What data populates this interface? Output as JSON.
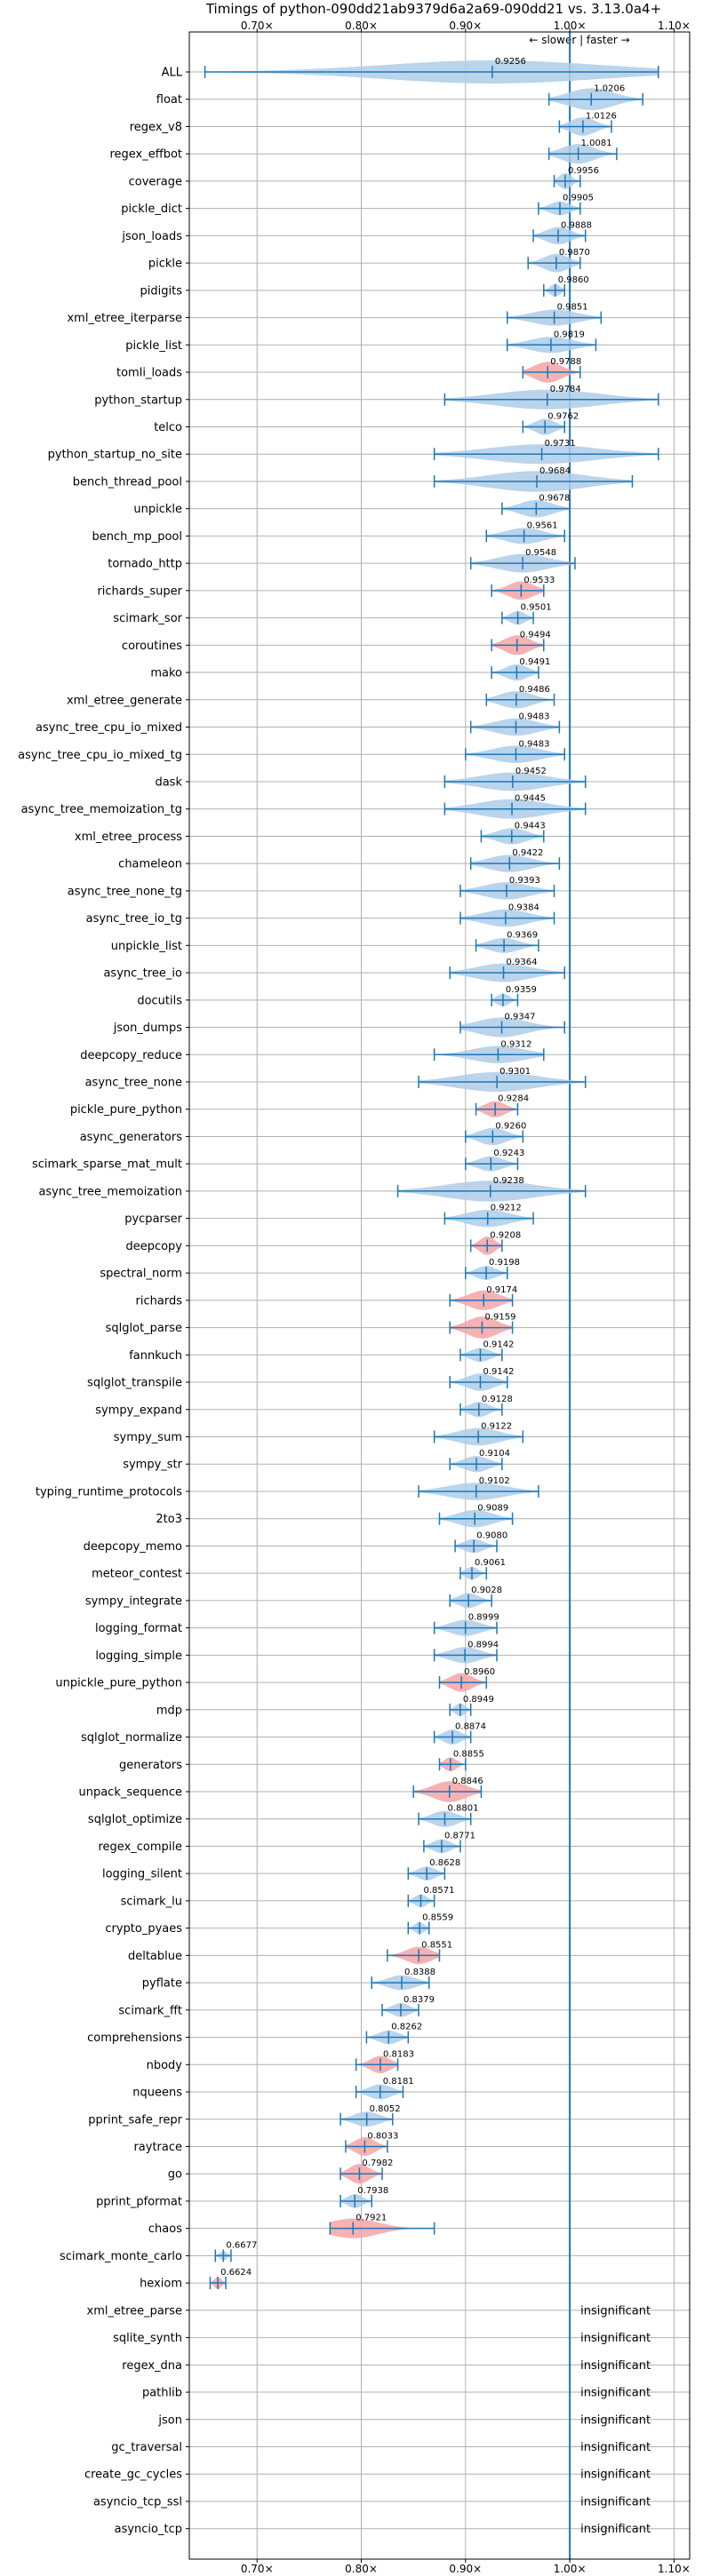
{
  "chart_data": {
    "type": "violin",
    "title": "Timings of python-090dd21ab9379d6a2a69-090dd21 vs. 3.13.0a4+",
    "direction_note": "← slower | faster →",
    "x_ticks": [
      "0.70x",
      "0.80x",
      "0.90x",
      "1.00x",
      "1.10x"
    ],
    "x_tick_values": [
      0.7,
      0.8,
      0.9,
      1.0,
      1.1
    ],
    "xlim": [
      0.635,
      1.115
    ],
    "reference_line": 1.0,
    "grid": true,
    "colors": {
      "faster_or_neutral": "#1f77b4",
      "violin_fill": "#aecde9",
      "slower_significant": "#f4a3a6",
      "reference": "#1f77b4"
    },
    "insignificant_text": "insignificant",
    "benchmarks": [
      {
        "name": "ALL",
        "value": 0.9256,
        "label": "0.9256",
        "min": 0.65,
        "max": 1.085,
        "width": 1.0,
        "sig": false
      },
      {
        "name": "float",
        "value": 1.0206,
        "label": "1.0206",
        "min": 0.98,
        "max": 1.07,
        "width": 0.95,
        "sig": false
      },
      {
        "name": "regex_v8",
        "value": 1.0126,
        "label": "1.0126",
        "min": 0.99,
        "max": 1.04,
        "width": 0.8,
        "sig": false
      },
      {
        "name": "regex_effbot",
        "value": 1.0081,
        "label": "1.0081",
        "min": 0.98,
        "max": 1.045,
        "width": 0.85,
        "sig": false
      },
      {
        "name": "coverage",
        "value": 0.9956,
        "label": "0.9956",
        "min": 0.985,
        "max": 1.01,
        "width": 0.7,
        "sig": false
      },
      {
        "name": "pickle_dict",
        "value": 0.9905,
        "label": "0.9905",
        "min": 0.97,
        "max": 1.01,
        "width": 0.6,
        "sig": false
      },
      {
        "name": "json_loads",
        "value": 0.9888,
        "label": "0.9888",
        "min": 0.965,
        "max": 1.015,
        "width": 0.75,
        "sig": false
      },
      {
        "name": "pickle",
        "value": 0.987,
        "label": "0.9870",
        "min": 0.96,
        "max": 1.01,
        "width": 0.8,
        "sig": false
      },
      {
        "name": "pidigits",
        "value": 0.986,
        "label": "0.9860",
        "min": 0.975,
        "max": 0.995,
        "width": 0.55,
        "sig": false
      },
      {
        "name": "xml_etree_iterparse",
        "value": 0.9851,
        "label": "0.9851",
        "min": 0.94,
        "max": 1.03,
        "width": 0.7,
        "sig": false
      },
      {
        "name": "pickle_list",
        "value": 0.9819,
        "label": "0.9819",
        "min": 0.94,
        "max": 1.025,
        "width": 0.7,
        "sig": false
      },
      {
        "name": "tomli_loads",
        "value": 0.9788,
        "label": "0.9788",
        "min": 0.955,
        "max": 1.01,
        "width": 0.9,
        "sig": true
      },
      {
        "name": "python_startup",
        "value": 0.9784,
        "label": "0.9784",
        "min": 0.88,
        "max": 1.085,
        "width": 0.85,
        "sig": false
      },
      {
        "name": "telco",
        "value": 0.9762,
        "label": "0.9762",
        "min": 0.955,
        "max": 0.995,
        "width": 0.7,
        "sig": false
      },
      {
        "name": "python_startup_no_site",
        "value": 0.9731,
        "label": "0.9731",
        "min": 0.87,
        "max": 1.085,
        "width": 0.85,
        "sig": false
      },
      {
        "name": "bench_thread_pool",
        "value": 0.9684,
        "label": "0.9684",
        "min": 0.87,
        "max": 1.06,
        "width": 0.9,
        "sig": false
      },
      {
        "name": "unpickle",
        "value": 0.9678,
        "label": "0.9678",
        "min": 0.935,
        "max": 1.0,
        "width": 0.75,
        "sig": false
      },
      {
        "name": "bench_mp_pool",
        "value": 0.9561,
        "label": "0.9561",
        "min": 0.92,
        "max": 0.995,
        "width": 0.7,
        "sig": false
      },
      {
        "name": "tornado_http",
        "value": 0.9548,
        "label": "0.9548",
        "min": 0.905,
        "max": 1.005,
        "width": 0.8,
        "sig": false
      },
      {
        "name": "richards_super",
        "value": 0.9533,
        "label": "0.9533",
        "min": 0.925,
        "max": 0.975,
        "width": 0.8,
        "sig": true
      },
      {
        "name": "scimark_sor",
        "value": 0.9501,
        "label": "0.9501",
        "min": 0.935,
        "max": 0.965,
        "width": 0.6,
        "sig": false
      },
      {
        "name": "coroutines",
        "value": 0.9494,
        "label": "0.9494",
        "min": 0.925,
        "max": 0.975,
        "width": 0.85,
        "sig": true
      },
      {
        "name": "mako",
        "value": 0.9491,
        "label": "0.9491",
        "min": 0.925,
        "max": 0.97,
        "width": 0.7,
        "sig": false
      },
      {
        "name": "xml_etree_generate",
        "value": 0.9486,
        "label": "0.9486",
        "min": 0.92,
        "max": 0.985,
        "width": 0.75,
        "sig": false
      },
      {
        "name": "async_tree_cpu_io_mixed",
        "value": 0.9483,
        "label": "0.9483",
        "min": 0.905,
        "max": 0.99,
        "width": 0.75,
        "sig": false
      },
      {
        "name": "async_tree_cpu_io_mixed_tg",
        "value": 0.9483,
        "label": "0.9483",
        "min": 0.9,
        "max": 0.995,
        "width": 0.75,
        "sig": false
      },
      {
        "name": "dask",
        "value": 0.9452,
        "label": "0.9452",
        "min": 0.88,
        "max": 1.015,
        "width": 0.8,
        "sig": false
      },
      {
        "name": "async_tree_memoization_tg",
        "value": 0.9445,
        "label": "0.9445",
        "min": 0.88,
        "max": 1.015,
        "width": 0.85,
        "sig": false
      },
      {
        "name": "xml_etree_process",
        "value": 0.9443,
        "label": "0.9443",
        "min": 0.915,
        "max": 0.975,
        "width": 0.7,
        "sig": false
      },
      {
        "name": "chameleon",
        "value": 0.9422,
        "label": "0.9422",
        "min": 0.905,
        "max": 0.99,
        "width": 0.75,
        "sig": false
      },
      {
        "name": "async_tree_none_tg",
        "value": 0.9393,
        "label": "0.9393",
        "min": 0.895,
        "max": 0.985,
        "width": 0.75,
        "sig": false
      },
      {
        "name": "async_tree_io_tg",
        "value": 0.9384,
        "label": "0.9384",
        "min": 0.895,
        "max": 0.985,
        "width": 0.75,
        "sig": false
      },
      {
        "name": "unpickle_list",
        "value": 0.9369,
        "label": "0.9369",
        "min": 0.91,
        "max": 0.97,
        "width": 0.65,
        "sig": false
      },
      {
        "name": "async_tree_io",
        "value": 0.9364,
        "label": "0.9364",
        "min": 0.885,
        "max": 0.995,
        "width": 0.8,
        "sig": false
      },
      {
        "name": "docutils",
        "value": 0.9359,
        "label": "0.9359",
        "min": 0.925,
        "max": 0.95,
        "width": 0.55,
        "sig": false
      },
      {
        "name": "json_dumps",
        "value": 0.9347,
        "label": "0.9347",
        "min": 0.895,
        "max": 0.995,
        "width": 0.85,
        "sig": false
      },
      {
        "name": "deepcopy_reduce",
        "value": 0.9312,
        "label": "0.9312",
        "min": 0.87,
        "max": 0.975,
        "width": 0.75,
        "sig": false
      },
      {
        "name": "async_tree_none",
        "value": 0.9301,
        "label": "0.9301",
        "min": 0.855,
        "max": 1.015,
        "width": 0.85,
        "sig": false
      },
      {
        "name": "pickle_pure_python",
        "value": 0.9284,
        "label": "0.9284",
        "min": 0.91,
        "max": 0.95,
        "width": 0.7,
        "sig": true
      },
      {
        "name": "async_generators",
        "value": 0.926,
        "label": "0.9260",
        "min": 0.9,
        "max": 0.955,
        "width": 0.75,
        "sig": false
      },
      {
        "name": "scimark_sparse_mat_mult",
        "value": 0.9243,
        "label": "0.9243",
        "min": 0.9,
        "max": 0.95,
        "width": 0.65,
        "sig": false
      },
      {
        "name": "async_tree_memoization",
        "value": 0.9238,
        "label": "0.9238",
        "min": 0.835,
        "max": 1.015,
        "width": 0.9,
        "sig": false
      },
      {
        "name": "pycparser",
        "value": 0.9212,
        "label": "0.9212",
        "min": 0.88,
        "max": 0.965,
        "width": 0.75,
        "sig": false
      },
      {
        "name": "deepcopy",
        "value": 0.9208,
        "label": "0.9208",
        "min": 0.905,
        "max": 0.935,
        "width": 0.8,
        "sig": true
      },
      {
        "name": "spectral_norm",
        "value": 0.9198,
        "label": "0.9198",
        "min": 0.9,
        "max": 0.94,
        "width": 0.6,
        "sig": false
      },
      {
        "name": "richards",
        "value": 0.9174,
        "label": "0.9174",
        "min": 0.885,
        "max": 0.945,
        "width": 0.85,
        "sig": true
      },
      {
        "name": "sqlglot_parse",
        "value": 0.9159,
        "label": "0.9159",
        "min": 0.885,
        "max": 0.945,
        "width": 0.95,
        "sig": true
      },
      {
        "name": "fannkuch",
        "value": 0.9142,
        "label": "0.9142",
        "min": 0.895,
        "max": 0.935,
        "width": 0.6,
        "sig": false
      },
      {
        "name": "sqlglot_transpile",
        "value": 0.9142,
        "label": "0.9142",
        "min": 0.885,
        "max": 0.94,
        "width": 0.75,
        "sig": false
      },
      {
        "name": "sympy_expand",
        "value": 0.9128,
        "label": "0.9128",
        "min": 0.895,
        "max": 0.935,
        "width": 0.65,
        "sig": false
      },
      {
        "name": "sympy_sum",
        "value": 0.9122,
        "label": "0.9122",
        "min": 0.87,
        "max": 0.955,
        "width": 0.75,
        "sig": false
      },
      {
        "name": "sympy_str",
        "value": 0.9104,
        "label": "0.9104",
        "min": 0.885,
        "max": 0.935,
        "width": 0.7,
        "sig": false
      },
      {
        "name": "typing_runtime_protocols",
        "value": 0.9102,
        "label": "0.9102",
        "min": 0.855,
        "max": 0.97,
        "width": 0.75,
        "sig": false
      },
      {
        "name": "2to3",
        "value": 0.9089,
        "label": "0.9089",
        "min": 0.875,
        "max": 0.945,
        "width": 0.75,
        "sig": false
      },
      {
        "name": "deepcopy_memo",
        "value": 0.908,
        "label": "0.9080",
        "min": 0.89,
        "max": 0.93,
        "width": 0.6,
        "sig": false
      },
      {
        "name": "meteor_contest",
        "value": 0.9061,
        "label": "0.9061",
        "min": 0.895,
        "max": 0.92,
        "width": 0.55,
        "sig": false
      },
      {
        "name": "sympy_integrate",
        "value": 0.9028,
        "label": "0.9028",
        "min": 0.885,
        "max": 0.925,
        "width": 0.65,
        "sig": false
      },
      {
        "name": "logging_format",
        "value": 0.8999,
        "label": "0.8999",
        "min": 0.87,
        "max": 0.93,
        "width": 0.7,
        "sig": false
      },
      {
        "name": "logging_simple",
        "value": 0.8994,
        "label": "0.8994",
        "min": 0.87,
        "max": 0.93,
        "width": 0.7,
        "sig": false
      },
      {
        "name": "unpickle_pure_python",
        "value": 0.896,
        "label": "0.8960",
        "min": 0.875,
        "max": 0.92,
        "width": 0.8,
        "sig": true
      },
      {
        "name": "mdp",
        "value": 0.8949,
        "label": "0.8949",
        "min": 0.885,
        "max": 0.905,
        "width": 0.55,
        "sig": false
      },
      {
        "name": "sqlglot_normalize",
        "value": 0.8874,
        "label": "0.8874",
        "min": 0.87,
        "max": 0.905,
        "width": 0.65,
        "sig": false
      },
      {
        "name": "generators",
        "value": 0.8855,
        "label": "0.8855",
        "min": 0.875,
        "max": 0.9,
        "width": 0.6,
        "sig": true
      },
      {
        "name": "unpack_sequence",
        "value": 0.8846,
        "label": "0.8846",
        "min": 0.85,
        "max": 0.915,
        "width": 0.9,
        "sig": true
      },
      {
        "name": "sqlglot_optimize",
        "value": 0.8801,
        "label": "0.8801",
        "min": 0.855,
        "max": 0.905,
        "width": 0.7,
        "sig": false
      },
      {
        "name": "regex_compile",
        "value": 0.8771,
        "label": "0.8771",
        "min": 0.86,
        "max": 0.895,
        "width": 0.6,
        "sig": false
      },
      {
        "name": "logging_silent",
        "value": 0.8628,
        "label": "0.8628",
        "min": 0.845,
        "max": 0.88,
        "width": 0.6,
        "sig": false
      },
      {
        "name": "scimark_lu",
        "value": 0.8571,
        "label": "0.8571",
        "min": 0.845,
        "max": 0.87,
        "width": 0.55,
        "sig": false
      },
      {
        "name": "crypto_pyaes",
        "value": 0.8559,
        "label": "0.8559",
        "min": 0.845,
        "max": 0.865,
        "width": 0.5,
        "sig": false
      },
      {
        "name": "deltablue",
        "value": 0.8551,
        "label": "0.8551",
        "min": 0.825,
        "max": 0.875,
        "width": 0.75,
        "sig": true
      },
      {
        "name": "pyflate",
        "value": 0.8388,
        "label": "0.8388",
        "min": 0.81,
        "max": 0.865,
        "width": 0.65,
        "sig": false
      },
      {
        "name": "scimark_fft",
        "value": 0.8379,
        "label": "0.8379",
        "min": 0.82,
        "max": 0.855,
        "width": 0.6,
        "sig": false
      },
      {
        "name": "comprehensions",
        "value": 0.8262,
        "label": "0.8262",
        "min": 0.805,
        "max": 0.845,
        "width": 0.6,
        "sig": false
      },
      {
        "name": "nbody",
        "value": 0.8183,
        "label": "0.8183",
        "min": 0.795,
        "max": 0.835,
        "width": 0.75,
        "sig": true
      },
      {
        "name": "nqueens",
        "value": 0.8181,
        "label": "0.8181",
        "min": 0.795,
        "max": 0.84,
        "width": 0.65,
        "sig": false
      },
      {
        "name": "pprint_safe_repr",
        "value": 0.8052,
        "label": "0.8052",
        "min": 0.78,
        "max": 0.83,
        "width": 0.65,
        "sig": false
      },
      {
        "name": "raytrace",
        "value": 0.8033,
        "label": "0.8033",
        "min": 0.785,
        "max": 0.825,
        "width": 0.8,
        "sig": true
      },
      {
        "name": "go",
        "value": 0.7982,
        "label": "0.7982",
        "min": 0.78,
        "max": 0.82,
        "width": 0.85,
        "sig": true
      },
      {
        "name": "pprint_pformat",
        "value": 0.7938,
        "label": "0.7938",
        "min": 0.78,
        "max": 0.81,
        "width": 0.6,
        "sig": false
      },
      {
        "name": "chaos",
        "value": 0.7921,
        "label": "0.7921",
        "min": 0.77,
        "max": 0.87,
        "width": 0.85,
        "sig": true
      },
      {
        "name": "scimark_monte_carlo",
        "value": 0.6677,
        "label": "0.6677",
        "min": 0.66,
        "max": 0.675,
        "width": 0.4,
        "sig": false
      },
      {
        "name": "hexiom",
        "value": 0.6624,
        "label": "0.6624",
        "min": 0.655,
        "max": 0.67,
        "width": 0.5,
        "sig": true
      },
      {
        "name": "xml_etree_parse",
        "insignificant": true
      },
      {
        "name": "sqlite_synth",
        "insignificant": true
      },
      {
        "name": "regex_dna",
        "insignificant": true
      },
      {
        "name": "pathlib",
        "insignificant": true
      },
      {
        "name": "json",
        "insignificant": true
      },
      {
        "name": "gc_traversal",
        "insignificant": true
      },
      {
        "name": "create_gc_cycles",
        "insignificant": true
      },
      {
        "name": "asyncio_tcp_ssl",
        "insignificant": true
      },
      {
        "name": "asyncio_tcp",
        "insignificant": true
      }
    ]
  }
}
